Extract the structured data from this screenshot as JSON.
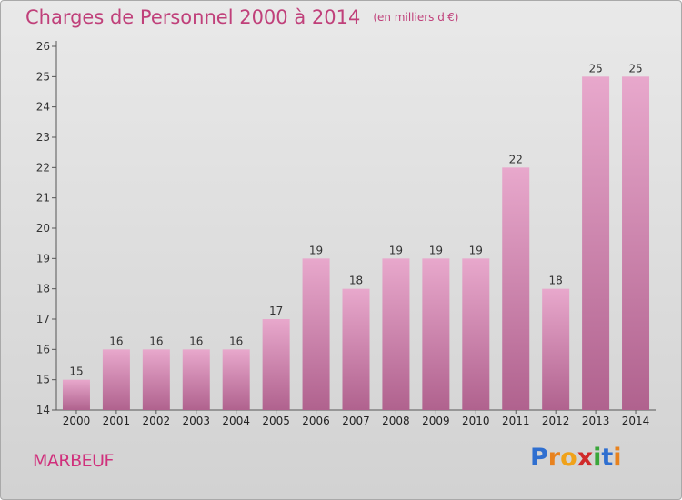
{
  "title": "Charges de Personnel 2000 à 2014",
  "subtitle": "(en milliers d'€)",
  "commune": "MARBEUF",
  "logo": {
    "letters": [
      "P",
      "r",
      "o",
      "x",
      "i",
      "t",
      "i"
    ],
    "colors": [
      "#2f6fd0",
      "#e8821e",
      "#f0a21a",
      "#d02a2a",
      "#3aa63a",
      "#2f6fd0",
      "#e8821e"
    ]
  },
  "colors": {
    "bar_top": "#e8a8cc",
    "bar_bottom": "#b0628e",
    "title": "#c0407a",
    "background_top": "#e9e9e9",
    "background_bottom": "#d2d2d2"
  },
  "chart_data": {
    "type": "bar",
    "title": "Charges de Personnel 2000 à 2014",
    "subtitle": "(en milliers d'€)",
    "categories": [
      "2000",
      "2001",
      "2002",
      "2003",
      "2004",
      "2005",
      "2006",
      "2007",
      "2008",
      "2009",
      "2010",
      "2011",
      "2012",
      "2013",
      "2014"
    ],
    "values": [
      15,
      16,
      16,
      16,
      16,
      17,
      19,
      18,
      19,
      19,
      19,
      22,
      18,
      25,
      25
    ],
    "ylim": [
      14,
      26
    ],
    "yticks": [
      14,
      15,
      16,
      17,
      18,
      19,
      20,
      21,
      22,
      23,
      24,
      25,
      26
    ],
    "grid": false,
    "data_labels": true
  }
}
